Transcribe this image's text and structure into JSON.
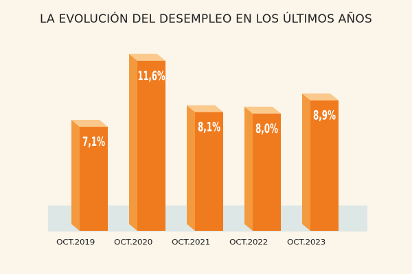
{
  "chart_data": {
    "type": "bar",
    "title": "LA EVOLUCIÓN DEL DESEMPLEO EN LOS ÚLTIMOS AÑOS",
    "categories": [
      "OCT.2019",
      "OCT.2020",
      "OCT.2021",
      "OCT.2022",
      "OCT.2023"
    ],
    "values": [
      7.1,
      11.6,
      8.1,
      8.0,
      8.9
    ],
    "value_labels": [
      "7,1%",
      "11,6%",
      "8,1%",
      "8,0%",
      "8,9%"
    ],
    "unit": "%",
    "grid": false,
    "legend": "none",
    "colors": {
      "bar_front": "#f07b1e",
      "bar_side": "#f39a3e",
      "bar_top": "#fbc98c",
      "background": "#fbf5ea",
      "floor": "#dde7e6"
    }
  }
}
